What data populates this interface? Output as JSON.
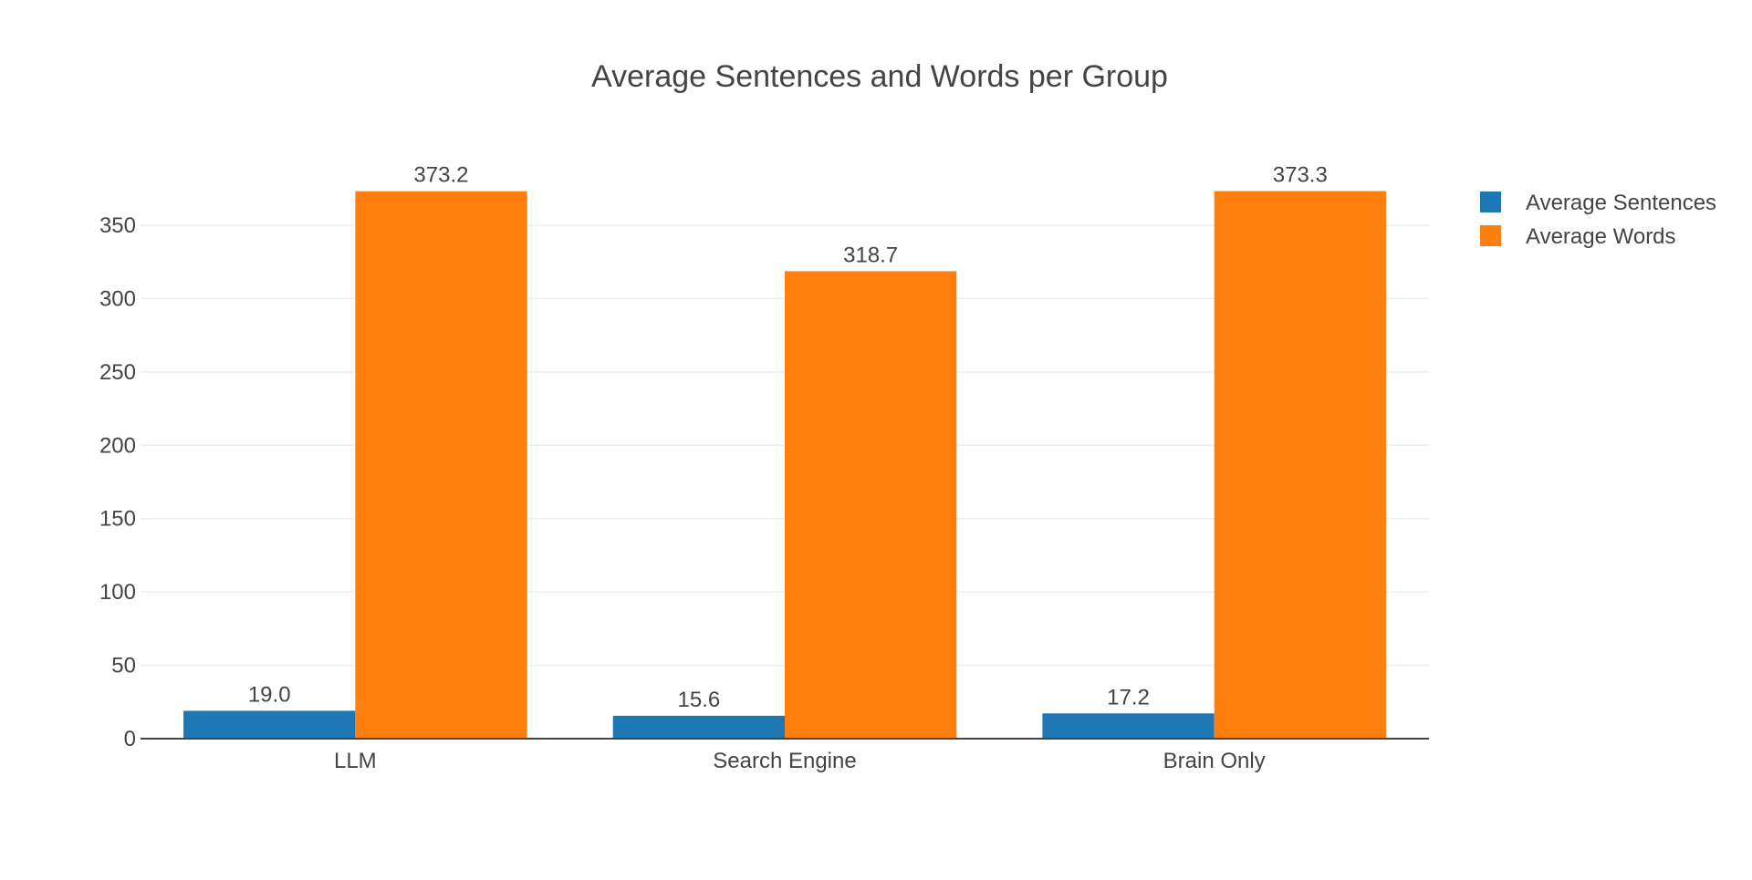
{
  "chart_data": {
    "type": "bar",
    "title": "Average Sentences and Words per Group",
    "xlabel": "",
    "ylabel": "",
    "categories": [
      "LLM",
      "Search Engine",
      "Brain Only"
    ],
    "series": [
      {
        "name": "Average Sentences",
        "values": [
          19.0,
          15.6,
          17.2
        ],
        "labels": [
          "19.0",
          "15.6",
          "17.2"
        ],
        "color": "#1f77b4"
      },
      {
        "name": "Average Words",
        "values": [
          373.2,
          318.7,
          373.3
        ],
        "labels": [
          "373.2",
          "318.7",
          "373.3"
        ],
        "color": "#ff7f0e"
      }
    ],
    "ylim": [
      0,
      392.9
    ],
    "yticks": [
      0,
      50,
      100,
      150,
      200,
      250,
      300,
      350
    ],
    "grid": true,
    "legend_position": "top-right",
    "colors": {
      "gridline": "#eeeeee",
      "axis_line": "#444444",
      "text": "#444444"
    }
  }
}
